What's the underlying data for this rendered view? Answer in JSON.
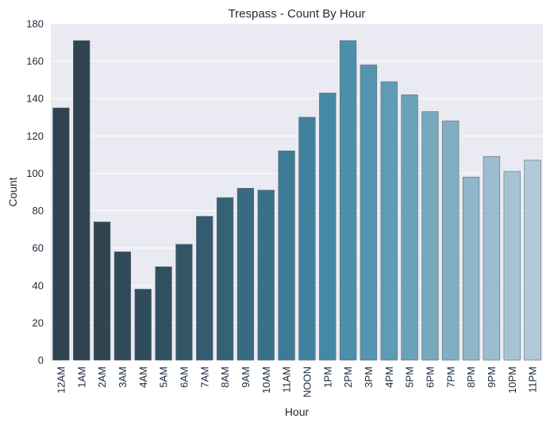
{
  "chart_data": {
    "type": "bar",
    "title": "Trespass - Count By Hour",
    "xlabel": "Hour",
    "ylabel": "Count",
    "ylim": [
      0,
      180
    ],
    "yticks": [
      0,
      20,
      40,
      60,
      80,
      100,
      120,
      140,
      160,
      180
    ],
    "grid": true,
    "categories": [
      "12AM",
      "1AM",
      "2AM",
      "3AM",
      "4AM",
      "5AM",
      "6AM",
      "7AM",
      "8AM",
      "9AM",
      "10AM",
      "11AM",
      "NOON",
      "1PM",
      "2PM",
      "3PM",
      "4PM",
      "5PM",
      "6PM",
      "7PM",
      "8PM",
      "9PM",
      "10PM",
      "11PM"
    ],
    "values": [
      135,
      171,
      74,
      58,
      38,
      50,
      62,
      77,
      87,
      92,
      91,
      112,
      130,
      143,
      171,
      158,
      149,
      142,
      133,
      128,
      98,
      109,
      101,
      107
    ],
    "colors": [
      "#2f4450",
      "#2f4450",
      "#2f4550",
      "#314a57",
      "#2f4c5a",
      "#31505f",
      "#325666",
      "#335c6e",
      "#366276",
      "#386a80",
      "#3a7188",
      "#3d7b94",
      "#40829e",
      "#4689a6",
      "#4c8fab",
      "#5595b0",
      "#5f9bb5",
      "#6aa2ba",
      "#76a8be",
      "#82aec3",
      "#8fb6c9",
      "#9bbdcf",
      "#a6c3d3",
      "#b0c9d8"
    ]
  }
}
